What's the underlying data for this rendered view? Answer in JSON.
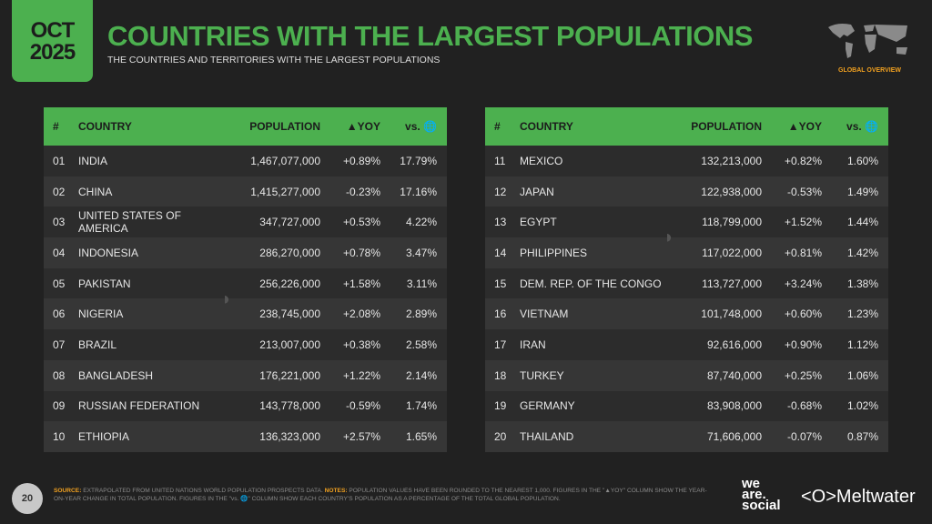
{
  "badge": {
    "month": "OCT",
    "year": "2025"
  },
  "title": "COUNTRIES WITH THE LARGEST POPULATIONS",
  "subtitle": "THE COUNTRIES AND TERRITORIES WITH THE LARGEST POPULATIONS",
  "section_label": "GLOBAL OVERVIEW",
  "columns": {
    "rank": "#",
    "country": "COUNTRY",
    "population": "POPULATION",
    "yoy": "▲YOY",
    "vs": "vs. 🌐"
  },
  "colors": {
    "accent": "#4cb04f",
    "background": "#212121",
    "highlight": "#f0a020"
  },
  "left_rows": [
    {
      "rank": "01",
      "country": "INDIA",
      "population": "1,467,077,000",
      "yoy": "+0.89%",
      "vs": "17.79%"
    },
    {
      "rank": "02",
      "country": "CHINA",
      "population": "1,415,277,000",
      "yoy": "-0.23%",
      "vs": "17.16%"
    },
    {
      "rank": "03",
      "country": "UNITED STATES OF AMERICA",
      "population": "347,727,000",
      "yoy": "+0.53%",
      "vs": "4.22%"
    },
    {
      "rank": "04",
      "country": "INDONESIA",
      "population": "286,270,000",
      "yoy": "+0.78%",
      "vs": "3.47%"
    },
    {
      "rank": "05",
      "country": "PAKISTAN",
      "population": "256,226,000",
      "yoy": "+1.58%",
      "vs": "3.11%"
    },
    {
      "rank": "06",
      "country": "NIGERIA",
      "population": "238,745,000",
      "yoy": "+2.08%",
      "vs": "2.89%"
    },
    {
      "rank": "07",
      "country": "BRAZIL",
      "population": "213,007,000",
      "yoy": "+0.38%",
      "vs": "2.58%"
    },
    {
      "rank": "08",
      "country": "BANGLADESH",
      "population": "176,221,000",
      "yoy": "+1.22%",
      "vs": "2.14%"
    },
    {
      "rank": "09",
      "country": "RUSSIAN FEDERATION",
      "population": "143,778,000",
      "yoy": "-0.59%",
      "vs": "1.74%"
    },
    {
      "rank": "10",
      "country": "ETHIOPIA",
      "population": "136,323,000",
      "yoy": "+2.57%",
      "vs": "1.65%"
    }
  ],
  "right_rows": [
    {
      "rank": "11",
      "country": "MEXICO",
      "population": "132,213,000",
      "yoy": "+0.82%",
      "vs": "1.60%"
    },
    {
      "rank": "12",
      "country": "JAPAN",
      "population": "122,938,000",
      "yoy": "-0.53%",
      "vs": "1.49%"
    },
    {
      "rank": "13",
      "country": "EGYPT",
      "population": "118,799,000",
      "yoy": "+1.52%",
      "vs": "1.44%"
    },
    {
      "rank": "14",
      "country": "PHILIPPINES",
      "population": "117,022,000",
      "yoy": "+0.81%",
      "vs": "1.42%"
    },
    {
      "rank": "15",
      "country": "DEM. REP. OF THE CONGO",
      "population": "113,727,000",
      "yoy": "+3.24%",
      "vs": "1.38%"
    },
    {
      "rank": "16",
      "country": "VIETNAM",
      "population": "101,748,000",
      "yoy": "+0.60%",
      "vs": "1.23%"
    },
    {
      "rank": "17",
      "country": "IRAN",
      "population": "92,616,000",
      "yoy": "+0.90%",
      "vs": "1.12%"
    },
    {
      "rank": "18",
      "country": "TURKEY",
      "population": "87,740,000",
      "yoy": "+0.25%",
      "vs": "1.06%"
    },
    {
      "rank": "19",
      "country": "GERMANY",
      "population": "83,908,000",
      "yoy": "-0.68%",
      "vs": "1.02%"
    },
    {
      "rank": "20",
      "country": "THAILAND",
      "population": "71,606,000",
      "yoy": "-0.07%",
      "vs": "0.87%"
    }
  ],
  "footer": {
    "page": "20",
    "source_label": "SOURCE:",
    "source_text": "EXTRAPOLATED FROM UNITED NATIONS WORLD POPULATION PROSPECTS DATA.",
    "notes_label": "NOTES:",
    "notes_text": "POPULATION VALUES HAVE BEEN ROUNDED TO THE NEAREST 1,000. FIGURES IN THE \"▲YOY\" COLUMN SHOW THE YEAR-ON-YEAR CHANGE IN TOTAL POPULATION. FIGURES IN THE \"vs. 🌐\" COLUMN SHOW EACH COUNTRY'S POPULATION AS A PERCENTAGE OF THE TOTAL GLOBAL POPULATION.",
    "logo1": "we are social",
    "logo2": "Meltwater"
  }
}
